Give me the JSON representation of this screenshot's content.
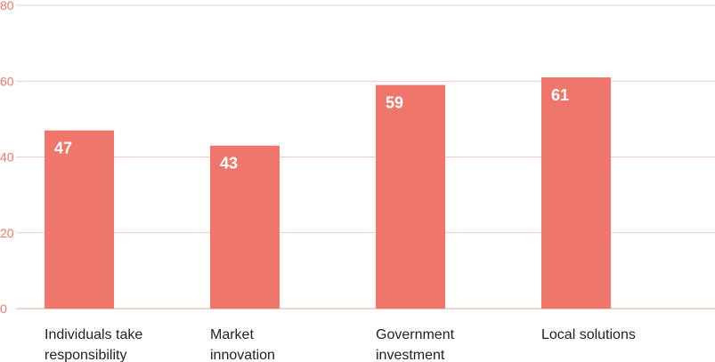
{
  "chart_data": {
    "type": "bar",
    "categories": [
      [
        "Individuals take",
        "responsibility"
      ],
      [
        "Market",
        "innovation"
      ],
      [
        "Government",
        "investment"
      ],
      [
        "Local solutions"
      ]
    ],
    "values": [
      47,
      43,
      59,
      61
    ],
    "yticks": [
      0,
      20,
      40,
      60,
      80
    ],
    "ylim": [
      0,
      80
    ],
    "grid": true,
    "title": "",
    "xlabel": "",
    "ylabel": "",
    "colors": {
      "bar": "#ee766a",
      "grid": "#f3c9c3",
      "tick": "#ef766a",
      "label": "#222222",
      "value_label": "#ffffff"
    }
  }
}
